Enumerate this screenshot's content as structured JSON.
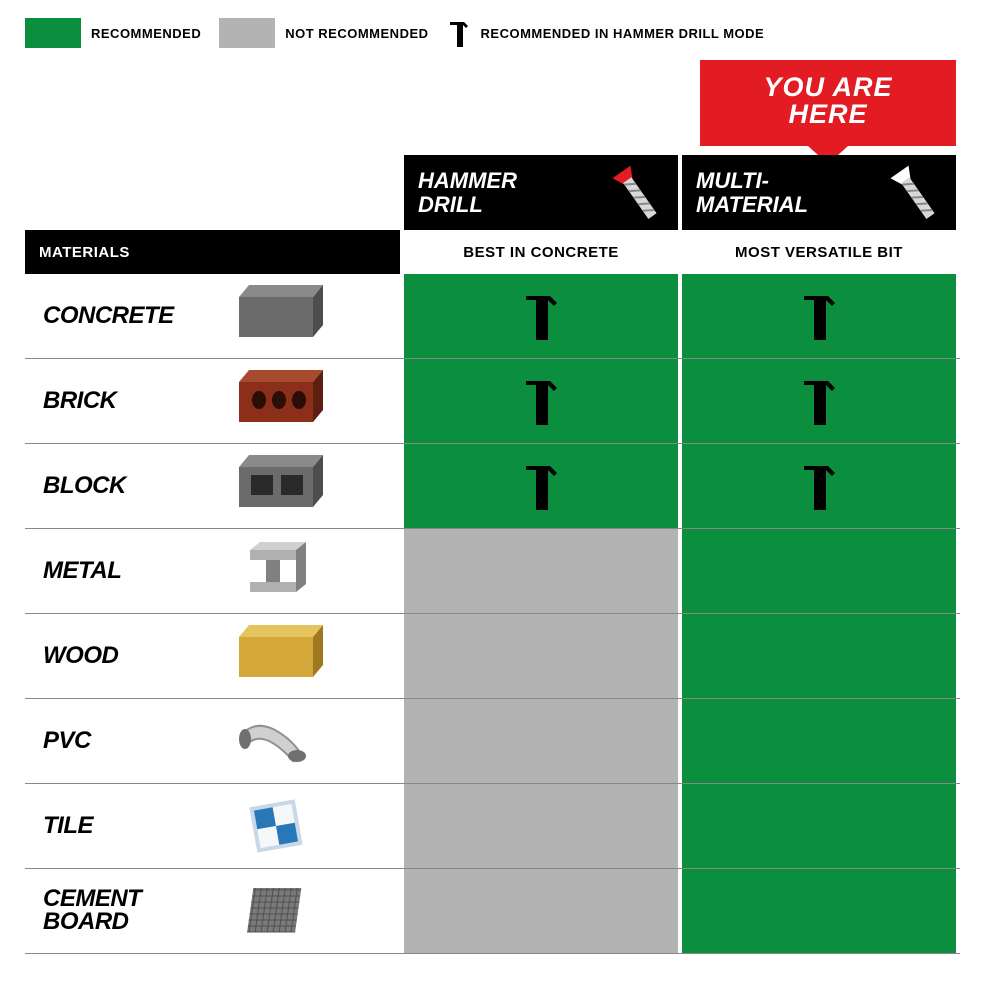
{
  "colors": {
    "recommended": "#0b8f3e",
    "not_recommended": "#b3b3b3",
    "header_bg": "#000000",
    "you_are_here_bg": "#e31b23",
    "row_border": "#888888"
  },
  "legend": {
    "recommended": "RECOMMENDED",
    "not_recommended": "NOT RECOMMENDED",
    "hammer_mode": "RECOMMENDED IN HAMMER DRILL MODE"
  },
  "you_are_here": "YOU ARE HERE",
  "table": {
    "materials_header": "MATERIALS",
    "columns": [
      {
        "id": "hammer_drill",
        "title": "HAMMER DRILL",
        "subtitle": "BEST IN CONCRETE",
        "bit_color": "#e31b23"
      },
      {
        "id": "multi_material",
        "title": "MULTI-MATERIAL",
        "subtitle": "MOST VERSATILE BIT",
        "bit_color": "#ffffff"
      }
    ],
    "rows": [
      {
        "label": "CONCRETE",
        "icon": "concrete",
        "cells": [
          {
            "status": "recommended",
            "hammer": true
          },
          {
            "status": "recommended",
            "hammer": true
          }
        ]
      },
      {
        "label": "BRICK",
        "icon": "brick",
        "cells": [
          {
            "status": "recommended",
            "hammer": true
          },
          {
            "status": "recommended",
            "hammer": true
          }
        ]
      },
      {
        "label": "BLOCK",
        "icon": "block",
        "cells": [
          {
            "status": "recommended",
            "hammer": true
          },
          {
            "status": "recommended",
            "hammer": true
          }
        ]
      },
      {
        "label": "METAL",
        "icon": "metal",
        "cells": [
          {
            "status": "not_recommended",
            "hammer": false
          },
          {
            "status": "recommended",
            "hammer": false
          }
        ]
      },
      {
        "label": "WOOD",
        "icon": "wood",
        "cells": [
          {
            "status": "not_recommended",
            "hammer": false
          },
          {
            "status": "recommended",
            "hammer": false
          }
        ]
      },
      {
        "label": "PVC",
        "icon": "pvc",
        "cells": [
          {
            "status": "not_recommended",
            "hammer": false
          },
          {
            "status": "recommended",
            "hammer": false
          }
        ]
      },
      {
        "label": "TILE",
        "icon": "tile",
        "cells": [
          {
            "status": "not_recommended",
            "hammer": false
          },
          {
            "status": "recommended",
            "hammer": false
          }
        ]
      },
      {
        "label": "CEMENT BOARD",
        "icon": "cement_board",
        "cells": [
          {
            "status": "not_recommended",
            "hammer": false
          },
          {
            "status": "recommended",
            "hammer": false
          }
        ]
      }
    ]
  },
  "material_icons": {
    "concrete": {
      "type": "box3d",
      "fill": "#6b6b6b",
      "top": "#8a8a8a",
      "side": "#4d4d4d",
      "holes": false
    },
    "brick": {
      "type": "box3d",
      "fill": "#8c2f1a",
      "top": "#a84a2e",
      "side": "#5e1e10",
      "holes": true,
      "hole_shape": "circle"
    },
    "block": {
      "type": "box3d",
      "fill": "#6b6b6b",
      "top": "#8a8a8a",
      "side": "#4d4d4d",
      "holes": true,
      "hole_shape": "rect"
    },
    "metal": {
      "type": "ibeam",
      "fill": "#b0b0b0",
      "shade": "#808080"
    },
    "wood": {
      "type": "box3d",
      "fill": "#d4a838",
      "top": "#e5c45e",
      "side": "#a07820",
      "holes": false
    },
    "pvc": {
      "type": "pipe",
      "fill": "#d0d0d0",
      "shade": "#909090"
    },
    "tile": {
      "type": "tile",
      "c1": "#2878b8",
      "c2": "#f5f8fb",
      "border": "#c8d8e8"
    },
    "cement_board": {
      "type": "mesh",
      "fill": "#7a7a7a",
      "line": "#505050"
    }
  }
}
